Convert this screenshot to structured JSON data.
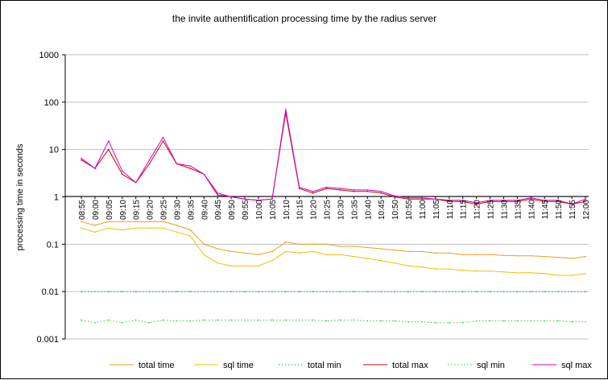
{
  "chart_data": {
    "type": "line",
    "title": "the invite authentification processing time by the radius server",
    "xlabel": "",
    "ylabel": "processing time in seconds",
    "y_scale": "log",
    "ylim": [
      0.001,
      1000
    ],
    "y_ticks": [
      "1000",
      "100",
      "10",
      "1",
      "0.1",
      "0.01",
      "0.001"
    ],
    "x_tick_labels": [
      "08:55",
      "09:00",
      "09:05",
      "09:10",
      "09:15",
      "09:20",
      "09:25",
      "09:30",
      "09:35",
      "09:40",
      "09:45",
      "09:50",
      "09:55",
      "10:00",
      "10:05",
      "10:10",
      "10:15",
      "10:20",
      "10:25",
      "10:30",
      "10:35",
      "10:40",
      "10:45",
      "10:50",
      "10:55",
      "11:00",
      "11:05",
      "11:10",
      "11:15",
      "11:20",
      "11:25",
      "11:30",
      "11:35",
      "11:40",
      "11:45",
      "11:50",
      "11:55",
      "12:00"
    ],
    "grid": "horizontal",
    "legend_position": "bottom",
    "x": [
      "08:55",
      "09:00",
      "09:05",
      "09:10",
      "09:15",
      "09:20",
      "09:25",
      "09:30",
      "09:35",
      "09:40",
      "09:45",
      "09:50",
      "09:55",
      "10:00",
      "10:05",
      "10:10",
      "10:15",
      "10:20",
      "10:25",
      "10:30",
      "10:35",
      "10:40",
      "10:45",
      "10:50",
      "10:55",
      "11:00",
      "11:05",
      "11:10",
      "11:15",
      "11:20",
      "11:25",
      "11:30",
      "11:35",
      "11:40",
      "11:45",
      "11:50",
      "11:55",
      "12:00"
    ],
    "series": [
      {
        "name": "total time",
        "color": "#E8A020",
        "style": "solid",
        "values": [
          0.3,
          0.25,
          0.3,
          0.3,
          0.3,
          0.3,
          0.3,
          0.25,
          0.2,
          0.1,
          0.08,
          0.07,
          0.065,
          0.06,
          0.07,
          0.11,
          0.1,
          0.1,
          0.1,
          0.09,
          0.09,
          0.085,
          0.08,
          0.075,
          0.07,
          0.07,
          0.065,
          0.065,
          0.06,
          0.06,
          0.06,
          0.058,
          0.057,
          0.057,
          0.055,
          0.053,
          0.05,
          0.055
        ]
      },
      {
        "name": "sql time",
        "color": "#F0C000",
        "style": "solid",
        "values": [
          0.22,
          0.18,
          0.22,
          0.2,
          0.22,
          0.22,
          0.22,
          0.18,
          0.15,
          0.06,
          0.04,
          0.035,
          0.035,
          0.035,
          0.045,
          0.07,
          0.065,
          0.07,
          0.06,
          0.06,
          0.055,
          0.05,
          0.045,
          0.04,
          0.035,
          0.033,
          0.03,
          0.03,
          0.028,
          0.027,
          0.027,
          0.026,
          0.025,
          0.025,
          0.024,
          0.022,
          0.022,
          0.024
        ]
      },
      {
        "name": "total min",
        "color": "#339999",
        "style": "dotted",
        "values": [
          0.01,
          0.01,
          0.01,
          0.01,
          0.01,
          0.01,
          0.01,
          0.01,
          0.01,
          0.01,
          0.01,
          0.01,
          0.01,
          0.01,
          0.01,
          0.01,
          0.01,
          0.01,
          0.01,
          0.01,
          0.01,
          0.01,
          0.01,
          0.01,
          0.01,
          0.01,
          0.01,
          0.01,
          0.01,
          0.01,
          0.01,
          0.01,
          0.01,
          0.01,
          0.01,
          0.01,
          0.01,
          0.01
        ]
      },
      {
        "name": "total max",
        "color": "#CC0000",
        "style": "solid",
        "values": [
          6,
          4,
          10,
          3,
          2,
          5,
          15,
          5,
          4,
          3,
          1.1,
          1,
          0.9,
          0.85,
          0.9,
          60,
          1.5,
          1.2,
          1.5,
          1.4,
          1.3,
          1.3,
          1.2,
          1,
          0.9,
          0.9,
          0.9,
          0.8,
          0.8,
          0.7,
          0.8,
          0.8,
          0.8,
          0.9,
          0.8,
          0.8,
          0.7,
          0.8
        ]
      },
      {
        "name": "sql min",
        "color": "#33CC33",
        "style": "dotted",
        "values": [
          0.0025,
          0.0022,
          0.0025,
          0.0022,
          0.0025,
          0.0022,
          0.0025,
          0.0024,
          0.0024,
          0.0025,
          0.0025,
          0.0025,
          0.0025,
          0.0025,
          0.0025,
          0.0025,
          0.0025,
          0.0025,
          0.0024,
          0.0025,
          0.0025,
          0.0024,
          0.0024,
          0.0024,
          0.0023,
          0.0023,
          0.0022,
          0.0022,
          0.0022,
          0.0024,
          0.0024,
          0.0024,
          0.0024,
          0.0024,
          0.0024,
          0.0024,
          0.0023,
          0.0023
        ]
      },
      {
        "name": "sql max",
        "color": "#CC00CC",
        "style": "solid",
        "values": [
          6.5,
          4,
          15,
          3.5,
          2,
          6,
          18,
          5,
          4.5,
          3,
          1.2,
          1,
          0.9,
          0.85,
          0.9,
          70,
          1.6,
          1.3,
          1.6,
          1.5,
          1.4,
          1.4,
          1.3,
          1.05,
          0.95,
          0.95,
          0.9,
          0.85,
          0.85,
          0.75,
          0.85,
          0.85,
          0.85,
          0.95,
          0.85,
          0.85,
          0.7,
          0.9
        ]
      }
    ]
  }
}
